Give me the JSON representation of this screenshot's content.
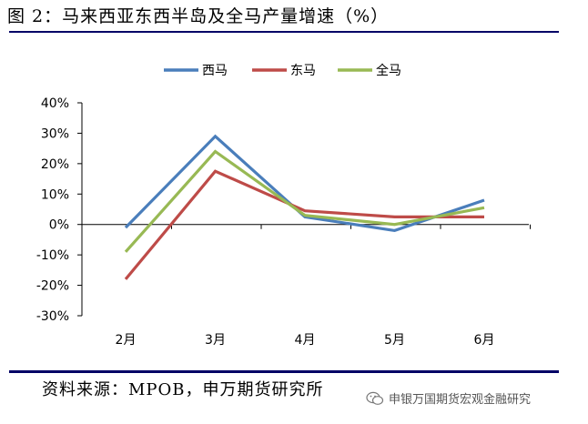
{
  "figure": {
    "title": "图 2：马来西亚东西半岛及全马产量增速（%）",
    "source": "资料来源：MPOB，申万期货研究所",
    "watermark": "申银万国期货宏观金融研究",
    "watermark_icon": "wechat-icon"
  },
  "chart_data": {
    "type": "line",
    "title": "",
    "xlabel": "",
    "ylabel": "",
    "categories": [
      "2月",
      "3月",
      "4月",
      "5月",
      "6月"
    ],
    "ylim": [
      -30,
      40
    ],
    "yticks": [
      40,
      30,
      20,
      10,
      0,
      -10,
      -20,
      -30
    ],
    "ytick_labels": [
      "40%",
      "30%",
      "20%",
      "10%",
      "0%",
      "-10%",
      "-20%",
      "-30%"
    ],
    "grid": false,
    "legend_position": "top",
    "series": [
      {
        "name": "西马",
        "color": "#4a7ebb",
        "values": [
          -1,
          29,
          2.5,
          -2,
          8
        ]
      },
      {
        "name": "东马",
        "color": "#be4b48",
        "values": [
          -18,
          17.5,
          4.5,
          2.5,
          2.5
        ]
      },
      {
        "name": "全马",
        "color": "#98b954",
        "values": [
          -9,
          24,
          3,
          0,
          5.5
        ]
      }
    ]
  }
}
